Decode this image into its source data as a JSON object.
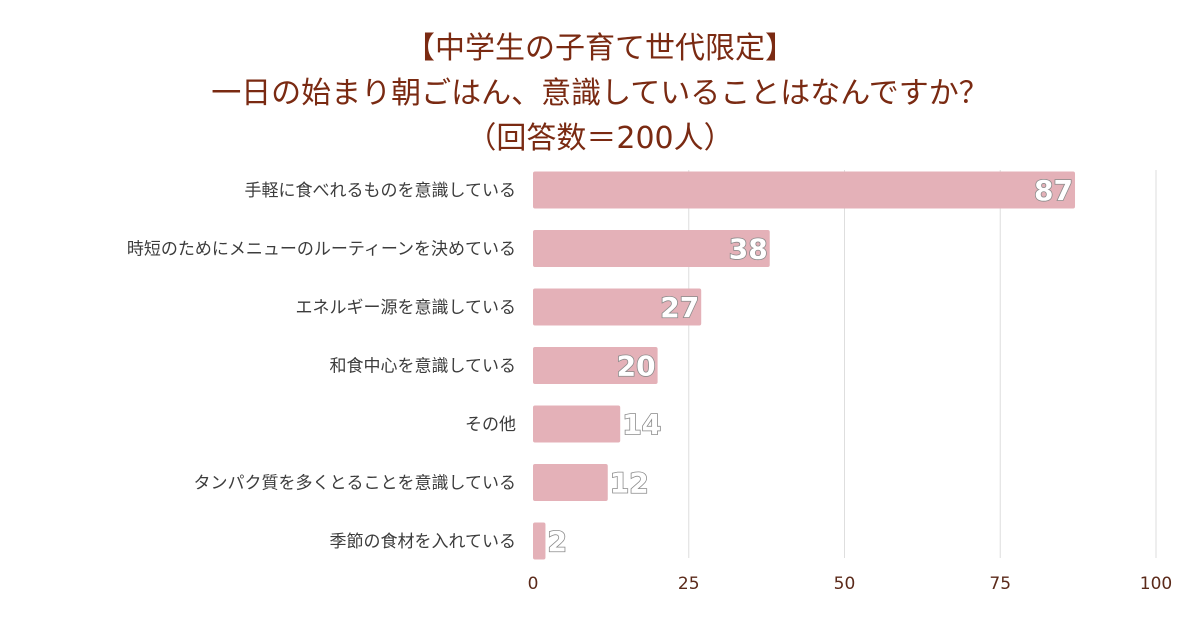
{
  "chart_data": {
    "type": "bar",
    "orientation": "horizontal",
    "title_lines": [
      "【中学生の子育て世代限定】",
      "一日の始まり朝ごはん、意識していることはなんですか？",
      "（回答数＝200人）"
    ],
    "categories": [
      "手軽に食べれるものを意識している",
      "時短のためにメニューのルーティーンを決めている",
      "エネルギー源を意識している",
      "和食中心を意識している",
      "その他",
      "タンパク質を多くとることを意識している",
      "季節の食材を入れている"
    ],
    "values": [
      87,
      38,
      27,
      20,
      14,
      12,
      2
    ],
    "xlim": [
      0,
      100
    ],
    "xticks": [
      0,
      25,
      50,
      75,
      100
    ],
    "grid": true,
    "bar_color": "#e4b1b8",
    "grid_color": "#dedede"
  }
}
